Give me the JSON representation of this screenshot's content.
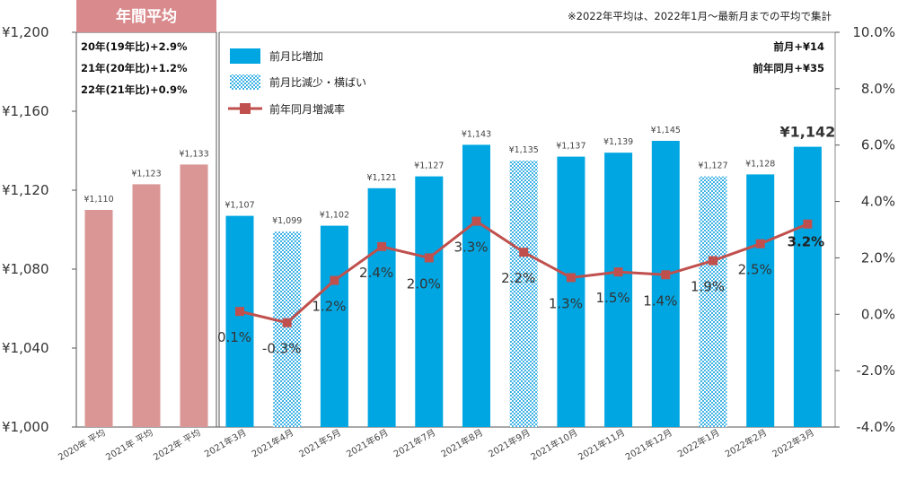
{
  "chart_data": {
    "type": "bar",
    "badge": "年間平均",
    "note": "※2022年平均は、2022年1月～最新月までの平均で集計",
    "annual_annotations": [
      "20年(19年比)+2.9%",
      "21年(20年比)+1.2%",
      "22年(21年比)+0.9%"
    ],
    "right_annotations": [
      "前月+¥14",
      "前年同月+¥35"
    ],
    "legend": [
      "前月比増加",
      "前月比減少・横ばい",
      "前年同月増減率"
    ],
    "y_left": {
      "min": 1000,
      "max": 1200,
      "step": 40,
      "ticks": [
        "¥1,000",
        "¥1,040",
        "¥1,080",
        "¥1,120",
        "¥1,160",
        "¥1,200"
      ]
    },
    "y_right": {
      "min": -4,
      "max": 10,
      "step": 2,
      "ticks": [
        "-4.0%",
        "-2.0%",
        "0.0%",
        "2.0%",
        "4.0%",
        "6.0%",
        "8.0%",
        "10.0%"
      ]
    },
    "categories": [
      "2020年 平均",
      "2021年 平均",
      "2022年 平均",
      "2021年3月",
      "2021年4月",
      "2021年5月",
      "2021年6月",
      "2021年7月",
      "2021年8月",
      "2021年9月",
      "2021年10月",
      "2021年11月",
      "2021年12月",
      "2022年1月",
      "2022年2月",
      "2022年3月"
    ],
    "values": [
      1110,
      1123,
      1133,
      1107,
      1099,
      1102,
      1121,
      1127,
      1143,
      1135,
      1137,
      1139,
      1145,
      1127,
      1128,
      1142
    ],
    "value_labels": [
      "¥1,110",
      "¥1,123",
      "¥1,133",
      "¥1,107",
      "¥1,099",
      "¥1,102",
      "¥1,121",
      "¥1,127",
      "¥1,143",
      "¥1,135",
      "¥1,137",
      "¥1,139",
      "¥1,145",
      "¥1,127",
      "¥1,128",
      "¥1,142"
    ],
    "bar_kind": [
      "annual",
      "annual",
      "annual",
      "increase",
      "decrease",
      "increase",
      "increase",
      "increase",
      "increase",
      "decrease",
      "increase",
      "increase",
      "increase",
      "decrease",
      "increase",
      "increase"
    ],
    "yoy_rates": [
      null,
      null,
      null,
      0.1,
      -0.3,
      1.2,
      2.4,
      2.0,
      3.3,
      2.2,
      1.3,
      1.5,
      1.4,
      1.9,
      2.5,
      3.2
    ],
    "yoy_labels": [
      "",
      "",
      "",
      "0.1%",
      "-0.3%",
      "1.2%",
      "2.4%",
      "2.0%",
      "3.3%",
      "2.2%",
      "1.3%",
      "1.5%",
      "1.4%",
      "1.9%",
      "2.5%",
      "3.2%"
    ],
    "colors": {
      "annual": "#d99694",
      "annual_badge": "#d98a8d",
      "increase": "#00a6e2",
      "decrease": "#6cc4ec",
      "line": "#c0504d",
      "negative_label": "#e03c31"
    }
  }
}
